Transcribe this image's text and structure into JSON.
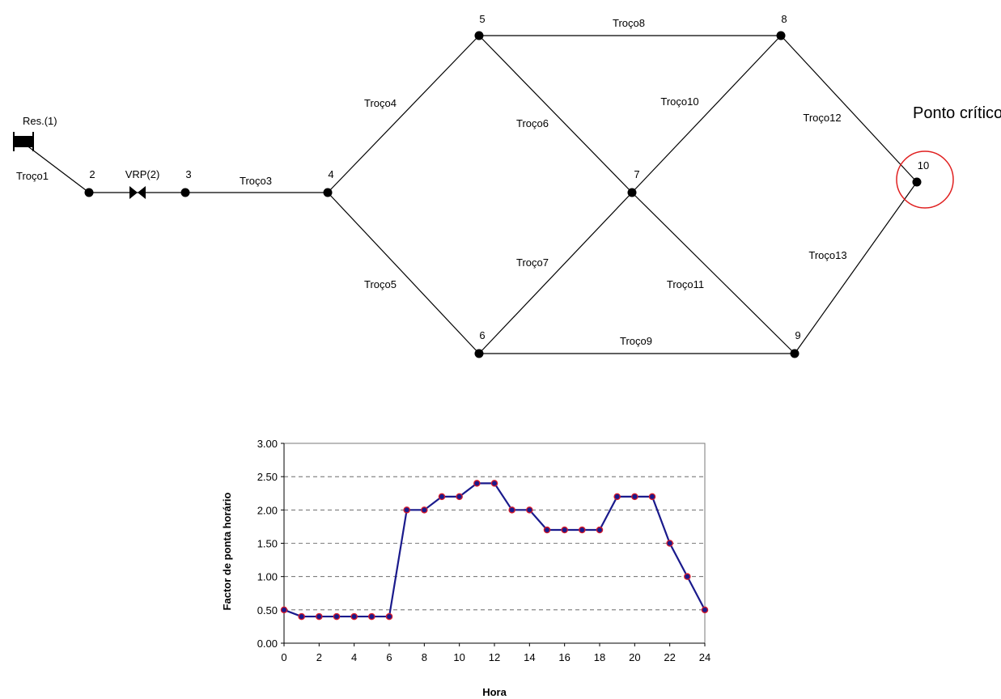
{
  "network": {
    "nodes": [
      {
        "id": "2",
        "label": "2"
      },
      {
        "id": "3",
        "label": "3"
      },
      {
        "id": "4",
        "label": "4"
      },
      {
        "id": "5",
        "label": "5"
      },
      {
        "id": "6",
        "label": "6"
      },
      {
        "id": "7",
        "label": "7"
      },
      {
        "id": "8",
        "label": "8"
      },
      {
        "id": "9",
        "label": "9"
      },
      {
        "id": "10",
        "label": "10"
      }
    ],
    "reservoir": {
      "id": "res",
      "label": "Res.(1)"
    },
    "valve": {
      "id": "vrp",
      "label": "VRP(2)"
    },
    "pipes": [
      {
        "label": "Troço1",
        "from": "res",
        "to": "2"
      },
      {
        "label": "Troço3",
        "from": "3",
        "to": "4"
      },
      {
        "label": "Troço4",
        "from": "4",
        "to": "5"
      },
      {
        "label": "Troço5",
        "from": "4",
        "to": "6"
      },
      {
        "label": "Troço6",
        "from": "5",
        "to": "7"
      },
      {
        "label": "Troço7",
        "from": "6",
        "to": "7"
      },
      {
        "label": "Troço8",
        "from": "5",
        "to": "8"
      },
      {
        "label": "Troço9",
        "from": "6",
        "to": "9"
      },
      {
        "label": "Troço10",
        "from": "7",
        "to": "8"
      },
      {
        "label": "Troço11",
        "from": "7",
        "to": "9"
      },
      {
        "label": "Troço12",
        "from": "8",
        "to": "10"
      },
      {
        "label": "Troço13",
        "from": "9",
        "to": "10"
      }
    ],
    "critical_point": {
      "node": "10",
      "label": "Ponto crítico",
      "color": "#e02020"
    }
  },
  "chart_data": {
    "type": "line",
    "xlabel": "Hora",
    "ylabel": "Factor de ponta horário",
    "x": [
      0,
      1,
      2,
      3,
      4,
      5,
      6,
      7,
      8,
      9,
      10,
      11,
      12,
      13,
      14,
      15,
      16,
      17,
      18,
      19,
      20,
      21,
      22,
      23,
      24
    ],
    "values": [
      0.5,
      0.4,
      0.4,
      0.4,
      0.4,
      0.4,
      0.4,
      2.0,
      2.0,
      2.2,
      2.2,
      2.4,
      2.4,
      2.0,
      2.0,
      1.7,
      1.7,
      1.7,
      1.7,
      2.2,
      2.2,
      2.2,
      1.5,
      1.0,
      0.5
    ],
    "xlim": [
      0,
      24
    ],
    "ylim": [
      0,
      3
    ],
    "xticks": [
      "0",
      "2",
      "4",
      "6",
      "8",
      "10",
      "12",
      "14",
      "16",
      "18",
      "20",
      "22",
      "24"
    ],
    "yticks": [
      "0.00",
      "0.50",
      "1.00",
      "1.50",
      "2.00",
      "2.50",
      "3.00"
    ],
    "grid": "horizontal dashed",
    "line_color": "#1a1a8c",
    "marker_color": "#d81b2a"
  }
}
